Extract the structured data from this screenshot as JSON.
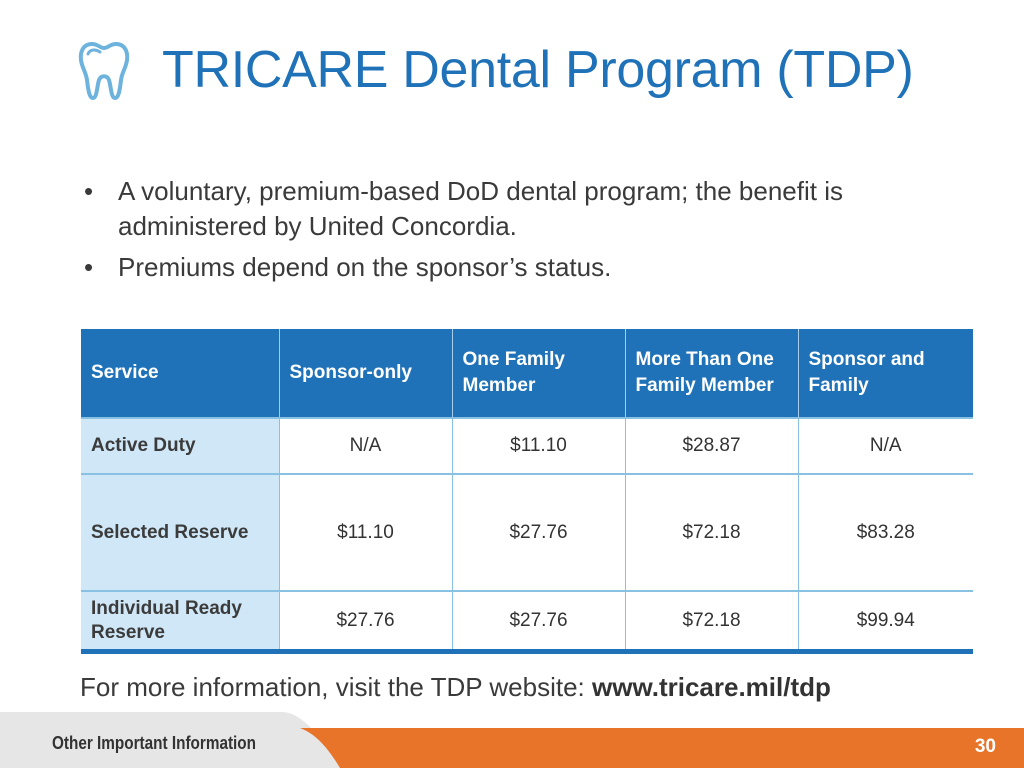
{
  "slide": {
    "title": "TRICARE Dental Program (TDP)",
    "icon": "tooth-icon"
  },
  "bullets": [
    "A voluntary, premium-based DoD dental program; the benefit is administered by United Concordia.",
    "Premiums depend on the sponsor’s status."
  ],
  "bullet_symbol": "•",
  "table": {
    "headers": [
      "Service",
      "Sponsor-only",
      "One Family Member",
      "More Than One Family Member",
      "Sponsor and Family"
    ],
    "rows": [
      {
        "label": "Active Duty",
        "values": [
          "N/A",
          "$11.10",
          "$28.87",
          "N/A"
        ]
      },
      {
        "label": "Selected Reserve",
        "values": [
          "$11.10",
          "$27.76",
          "$72.18",
          "$83.28"
        ]
      },
      {
        "label": "Individual Ready Reserve",
        "values": [
          "$27.76",
          "$27.76",
          "$72.18",
          "$99.94"
        ]
      }
    ]
  },
  "footer": {
    "note_prefix": "For more information, visit the TDP website: ",
    "url": "www.tricare.mil/tdp"
  },
  "bottom_bar": {
    "section_label": "Other Important Information",
    "page_number": "30"
  },
  "colors": {
    "title_blue": "#1f72b8",
    "header_blue": "#1f72b8",
    "row_label_bg": "#cfe7f7",
    "accent_orange": "#e8742a",
    "bar_gray": "#e6e6e6"
  }
}
